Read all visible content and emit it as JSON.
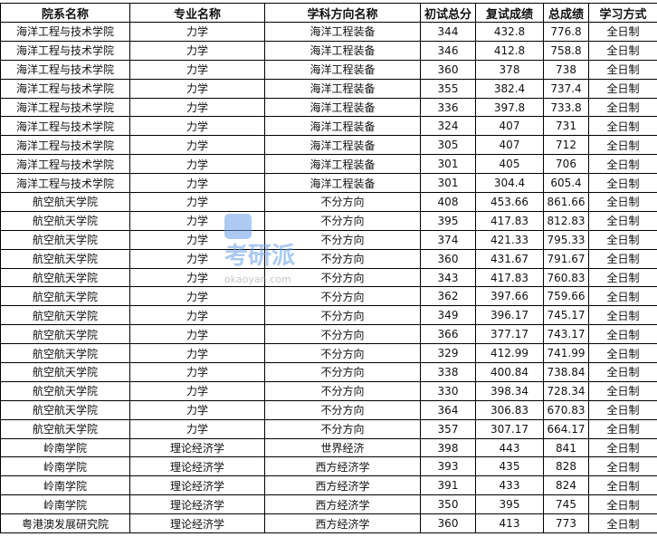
{
  "headers": [
    "院系名称",
    "专业名称",
    "学科方向名称",
    "初试总分",
    "复试成绩",
    "总成绩",
    "学习方式"
  ],
  "rows": [
    [
      "海洋工程与技术学院",
      "力学",
      "海洋工程装备",
      "344",
      "432.8",
      "776.8",
      "全日制"
    ],
    [
      "海洋工程与技术学院",
      "力学",
      "海洋工程装备",
      "346",
      "412.8",
      "758.8",
      "全日制"
    ],
    [
      "海洋工程与技术学院",
      "力学",
      "海洋工程装备",
      "360",
      "378",
      "738",
      "全日制"
    ],
    [
      "海洋工程与技术学院",
      "力学",
      "海洋工程装备",
      "355",
      "382.4",
      "737.4",
      "全日制"
    ],
    [
      "海洋工程与技术学院",
      "力学",
      "海洋工程装备",
      "336",
      "397.8",
      "733.8",
      "全日制"
    ],
    [
      "海洋工程与技术学院",
      "力学",
      "海洋工程装备",
      "324",
      "407",
      "731",
      "全日制"
    ],
    [
      "海洋工程与技术学院",
      "力学",
      "海洋工程装备",
      "305",
      "407",
      "712",
      "全日制"
    ],
    [
      "海洋工程与技术学院",
      "力学",
      "海洋工程装备",
      "301",
      "405",
      "706",
      "全日制"
    ],
    [
      "海洋工程与技术学院",
      "力学",
      "海洋工程装备",
      "301",
      "304.4",
      "605.4",
      "全日制"
    ],
    [
      "航空航天学院",
      "力学",
      "不分方向",
      "408",
      "453.66",
      "861.66",
      "全日制"
    ],
    [
      "航空航天学院",
      "力学",
      "不分方向",
      "395",
      "417.83",
      "812.83",
      "全日制"
    ],
    [
      "航空航天学院",
      "力学",
      "不分方向",
      "374",
      "421.33",
      "795.33",
      "全日制"
    ],
    [
      "航空航天学院",
      "力学",
      "不分方向",
      "360",
      "431.67",
      "791.67",
      "全日制"
    ],
    [
      "航空航天学院",
      "力学",
      "不分方向",
      "343",
      "417.83",
      "760.83",
      "全日制"
    ],
    [
      "航空航天学院",
      "力学",
      "不分方向",
      "362",
      "397.66",
      "759.66",
      "全日制"
    ],
    [
      "航空航天学院",
      "力学",
      "不分方向",
      "349",
      "396.17",
      "745.17",
      "全日制"
    ],
    [
      "航空航天学院",
      "力学",
      "不分方向",
      "366",
      "377.17",
      "743.17",
      "全日制"
    ],
    [
      "航空航天学院",
      "力学",
      "不分方向",
      "329",
      "412.99",
      "741.99",
      "全日制"
    ],
    [
      "航空航天学院",
      "力学",
      "不分方向",
      "338",
      "400.84",
      "738.84",
      "全日制"
    ],
    [
      "航空航天学院",
      "力学",
      "不分方向",
      "330",
      "398.34",
      "728.34",
      "全日制"
    ],
    [
      "航空航天学院",
      "力学",
      "不分方向",
      "364",
      "306.83",
      "670.83",
      "全日制"
    ],
    [
      "航空航天学院",
      "力学",
      "不分方向",
      "357",
      "307.17",
      "664.17",
      "全日制"
    ],
    [
      "岭南学院",
      "理论经济学",
      "世界经济",
      "398",
      "443",
      "841",
      "全日制"
    ],
    [
      "岭南学院",
      "理论经济学",
      "西方经济学",
      "393",
      "435",
      "828",
      "全日制"
    ],
    [
      "岭南学院",
      "理论经济学",
      "西方经济学",
      "391",
      "433",
      "824",
      "全日制"
    ],
    [
      "岭南学院",
      "理论经济学",
      "西方经济学",
      "350",
      "395",
      "745",
      "全日制"
    ],
    [
      "粤港澳发展研究院",
      "理论经济学",
      "西方经济学",
      "360",
      "413",
      "773",
      "全日制"
    ]
  ],
  "watermark": {
    "logo_text": "考研派",
    "name": "考研派",
    "url": "okaoyan.com",
    "color": "#6a9ee6"
  }
}
